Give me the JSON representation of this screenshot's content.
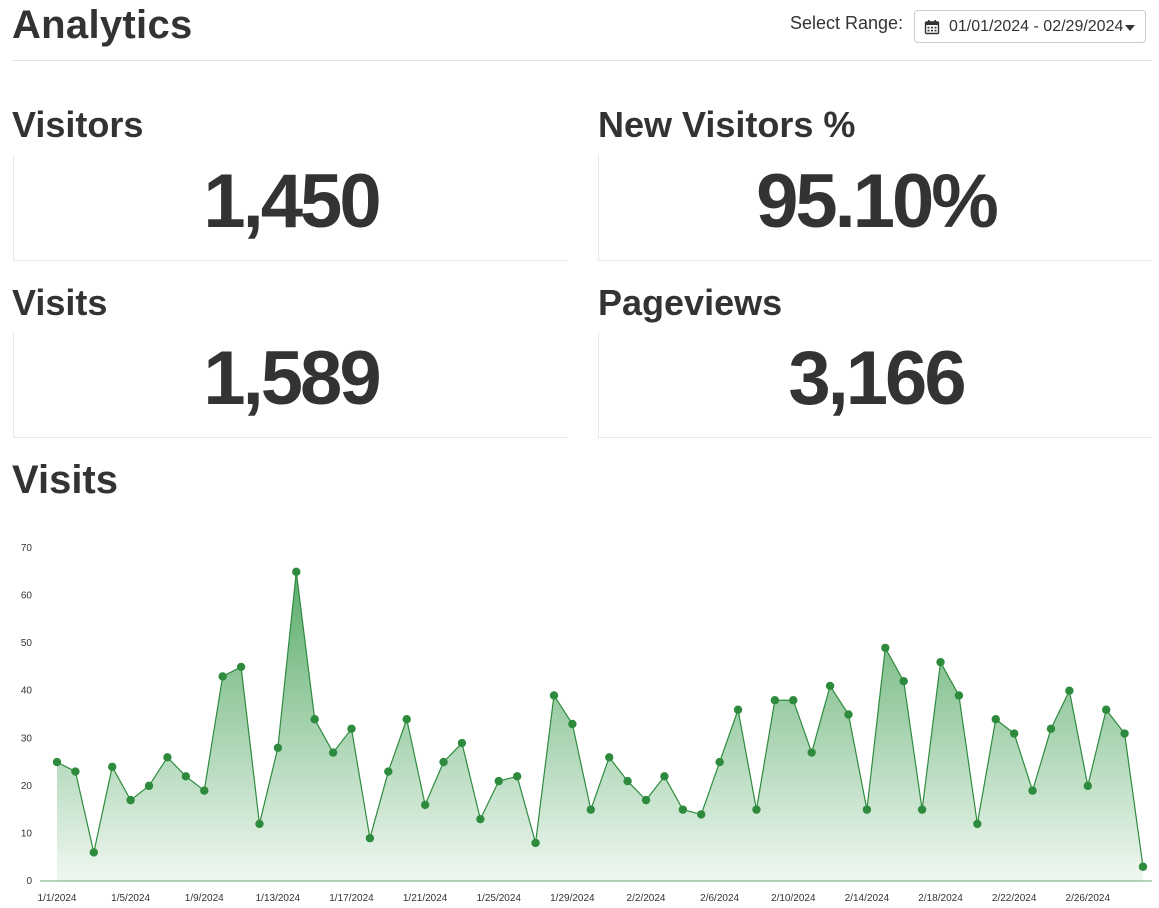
{
  "header": {
    "title": "Analytics",
    "range_label": "Select Range:",
    "range_value": "01/01/2024 - 02/29/2024",
    "range_icon": "calendar-icon",
    "range_caret_icon": "caret-down-icon"
  },
  "stats": {
    "visitors": {
      "label": "Visitors",
      "value": "1,450"
    },
    "new_visitors": {
      "label": "New Visitors %",
      "value": "95.10%"
    },
    "visits": {
      "label": "Visits",
      "value": "1,589"
    },
    "pageviews": {
      "label": "Pageviews",
      "value": "3,166"
    }
  },
  "chart_title": "Visits",
  "chart_data": {
    "type": "area",
    "title": "Visits",
    "xlabel": "",
    "ylabel": "",
    "ylim": [
      0,
      70
    ],
    "yticks": [
      0,
      10,
      20,
      30,
      40,
      50,
      60,
      70
    ],
    "grid": false,
    "line_color": "#2e8b3e",
    "fill_color": "#4caf63",
    "x_tick_labels": [
      "1/1/2024",
      "1/5/2024",
      "1/9/2024",
      "1/13/2024",
      "1/17/2024",
      "1/21/2024",
      "1/25/2024",
      "1/29/2024",
      "2/2/2024",
      "2/6/2024",
      "2/10/2024",
      "2/14/2024",
      "2/18/2024",
      "2/22/2024",
      "2/26/2024"
    ],
    "x_start": "2024-01-01",
    "x_end": "2024-02-29",
    "series": [
      {
        "values": [
          25,
          23,
          6,
          24,
          17,
          20,
          26,
          22,
          19,
          43,
          45,
          12,
          28,
          65,
          34,
          27,
          32,
          9,
          23,
          34,
          16,
          25,
          29,
          13,
          21,
          22,
          8,
          39,
          33,
          15,
          26,
          21,
          17,
          22,
          15,
          14,
          25,
          36,
          15,
          38,
          38,
          27,
          41,
          35,
          15,
          49,
          42,
          15,
          46,
          39,
          12,
          34,
          31,
          19,
          32,
          40,
          20,
          36,
          31,
          3
        ]
      }
    ]
  }
}
